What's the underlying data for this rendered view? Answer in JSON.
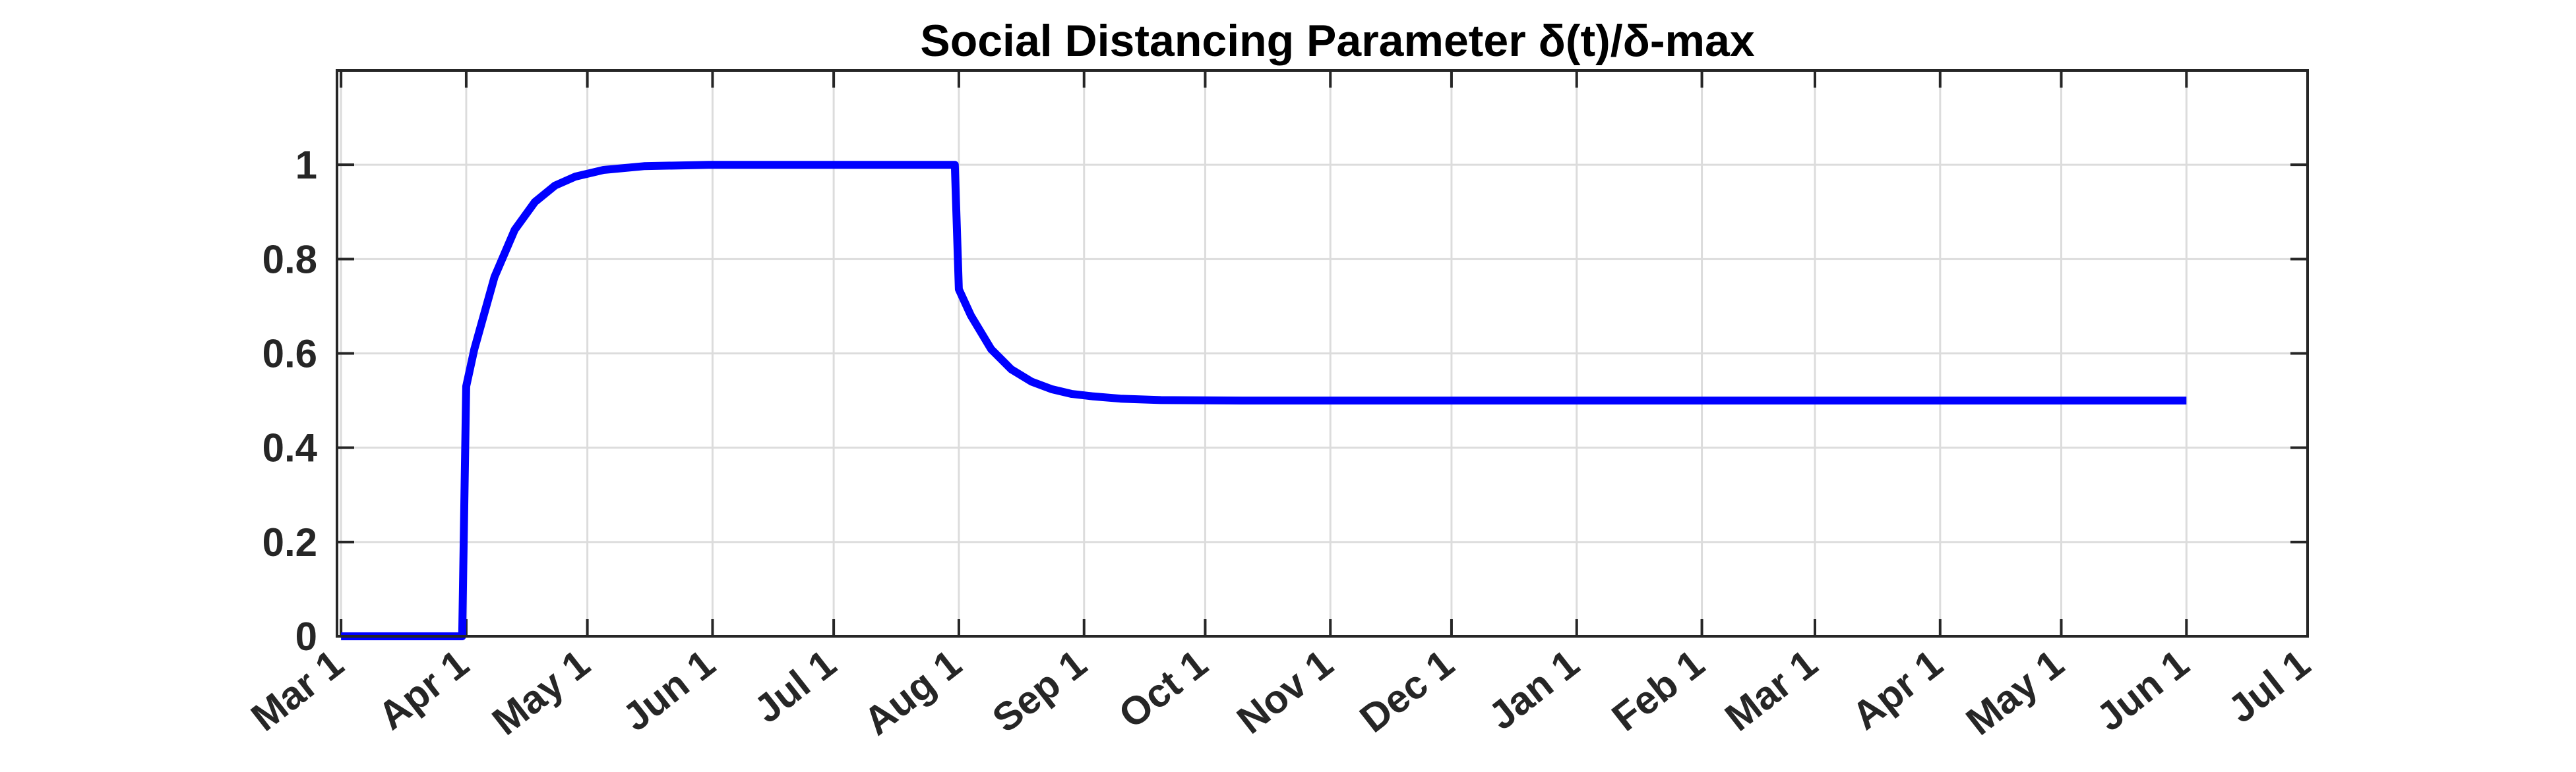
{
  "chart_data": {
    "type": "line",
    "title": "Social Distancing Parameter δ(t)/δ-max",
    "xlabel": "",
    "ylabel": "",
    "x_tick_labels": [
      "Mar 1",
      "Apr 1",
      "May 1",
      "Jun 1",
      "Jul 1",
      "Aug 1",
      "Sep 1",
      "Oct 1",
      "Nov 1",
      "Dec 1",
      "Jan 1",
      "Feb 1",
      "Mar 1",
      "Apr 1",
      "May 1",
      "Jun 1",
      "Jul 1"
    ],
    "x_tick_dates": [
      "2020-03-01",
      "2020-04-01",
      "2020-05-01",
      "2020-06-01",
      "2020-07-01",
      "2020-08-01",
      "2020-09-01",
      "2020-10-01",
      "2020-11-01",
      "2020-12-01",
      "2021-01-01",
      "2021-02-01",
      "2021-03-01",
      "2021-04-01",
      "2021-05-01",
      "2021-06-01",
      "2021-07-01"
    ],
    "xlim": [
      "2020-02-29",
      "2021-07-01"
    ],
    "y_tick_labels": [
      "0",
      "0.2",
      "0.4",
      "0.6",
      "0.8",
      "1"
    ],
    "y_ticks": [
      0,
      0.2,
      0.4,
      0.6,
      0.8,
      1
    ],
    "ylim": [
      0,
      1.2
    ],
    "grid": true,
    "series": [
      {
        "color": "#0000ff",
        "x": [
          "2020-03-01",
          "2020-03-31",
          "2020-04-01",
          "2020-04-03",
          "2020-04-08",
          "2020-04-13",
          "2020-04-18",
          "2020-04-23",
          "2020-04-28",
          "2020-05-05",
          "2020-05-15",
          "2020-05-31",
          "2020-07-31",
          "2020-08-01",
          "2020-08-04",
          "2020-08-09",
          "2020-08-14",
          "2020-08-19",
          "2020-08-24",
          "2020-08-29",
          "2020-09-03",
          "2020-09-10",
          "2020-09-20",
          "2020-10-10",
          "2021-06-01"
        ],
        "y": [
          0,
          0,
          0.53,
          0.609,
          0.762,
          0.862,
          0.921,
          0.956,
          0.975,
          0.989,
          0.997,
          1.0,
          1.0,
          0.736,
          0.68,
          0.609,
          0.566,
          0.54,
          0.524,
          0.514,
          0.509,
          0.504,
          0.501,
          0.5,
          0.5
        ]
      }
    ]
  }
}
